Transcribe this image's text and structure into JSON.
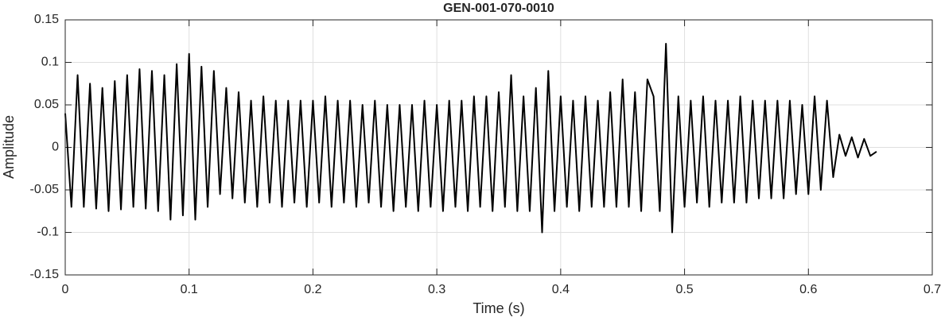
{
  "chart_data": {
    "type": "line",
    "title": "GEN-001-070-0010",
    "xlabel": "Time (s)",
    "ylabel": "Amplitude",
    "x": [
      0,
      0.005,
      0.01,
      0.015,
      0.02,
      0.025,
      0.03,
      0.035,
      0.04,
      0.045,
      0.05,
      0.055,
      0.06,
      0.065,
      0.07,
      0.075,
      0.08,
      0.085,
      0.09,
      0.095,
      0.1,
      0.105,
      0.11,
      0.115,
      0.12,
      0.125,
      0.13,
      0.135,
      0.14,
      0.145,
      0.15,
      0.155,
      0.16,
      0.165,
      0.17,
      0.175,
      0.18,
      0.185,
      0.19,
      0.195,
      0.2,
      0.205,
      0.21,
      0.215,
      0.22,
      0.225,
      0.23,
      0.235,
      0.24,
      0.245,
      0.25,
      0.255,
      0.26,
      0.265,
      0.27,
      0.275,
      0.28,
      0.285,
      0.29,
      0.295,
      0.3,
      0.305,
      0.31,
      0.315,
      0.32,
      0.325,
      0.33,
      0.335,
      0.34,
      0.345,
      0.35,
      0.355,
      0.36,
      0.365,
      0.37,
      0.375,
      0.38,
      0.385,
      0.39,
      0.395,
      0.4,
      0.405,
      0.41,
      0.415,
      0.42,
      0.425,
      0.43,
      0.435,
      0.44,
      0.445,
      0.45,
      0.455,
      0.46,
      0.465,
      0.47,
      0.475,
      0.48,
      0.485,
      0.49,
      0.495,
      0.5,
      0.505,
      0.51,
      0.515,
      0.52,
      0.525,
      0.53,
      0.535,
      0.54,
      0.545,
      0.55,
      0.555,
      0.56,
      0.565,
      0.57,
      0.575,
      0.58,
      0.585,
      0.59,
      0.595,
      0.6,
      0.605,
      0.61,
      0.615,
      0.62,
      0.625,
      0.63,
      0.635,
      0.64,
      0.645,
      0.65,
      0.655
    ],
    "values": [
      0.04,
      -0.07,
      0.085,
      -0.07,
      0.075,
      -0.072,
      0.07,
      -0.075,
      0.078,
      -0.073,
      0.085,
      -0.07,
      0.092,
      -0.072,
      0.09,
      -0.075,
      0.085,
      -0.085,
      0.098,
      -0.08,
      0.11,
      -0.085,
      0.095,
      -0.07,
      0.09,
      -0.055,
      0.07,
      -0.06,
      0.065,
      -0.065,
      0.055,
      -0.07,
      0.06,
      -0.065,
      0.055,
      -0.07,
      0.055,
      -0.065,
      0.055,
      -0.07,
      0.055,
      -0.065,
      0.06,
      -0.07,
      0.055,
      -0.065,
      0.055,
      -0.07,
      0.05,
      -0.065,
      0.055,
      -0.07,
      0.05,
      -0.075,
      0.05,
      -0.07,
      0.05,
      -0.075,
      0.055,
      -0.07,
      0.05,
      -0.075,
      0.055,
      -0.07,
      0.055,
      -0.075,
      0.06,
      -0.07,
      0.06,
      -0.075,
      0.065,
      -0.07,
      0.085,
      -0.075,
      0.06,
      -0.075,
      0.07,
      -0.1,
      0.09,
      -0.075,
      0.06,
      -0.07,
      0.055,
      -0.075,
      0.06,
      -0.07,
      0.055,
      -0.07,
      0.065,
      -0.07,
      0.08,
      -0.07,
      0.065,
      -0.075,
      0.08,
      0.06,
      -0.075,
      0.122,
      -0.1,
      0.06,
      -0.07,
      0.055,
      -0.065,
      0.06,
      -0.07,
      0.055,
      -0.065,
      0.055,
      -0.065,
      0.06,
      -0.065,
      0.055,
      -0.06,
      0.055,
      -0.06,
      0.055,
      -0.06,
      0.055,
      -0.055,
      0.05,
      -0.055,
      0.06,
      -0.05,
      0.055,
      -0.035,
      0.015,
      -0.01,
      0.012,
      -0.012,
      0.01,
      -0.01,
      -0.005
    ],
    "color": "#000000",
    "xlim": [
      0,
      0.7
    ],
    "xticks": [
      0,
      0.1,
      0.2,
      0.3,
      0.4,
      0.5,
      0.6,
      0.7
    ],
    "ylim": [
      -0.15,
      0.15
    ],
    "yticks": [
      -0.15,
      -0.1,
      -0.05,
      0,
      0.05,
      0.1,
      0.15
    ],
    "grid": true
  }
}
